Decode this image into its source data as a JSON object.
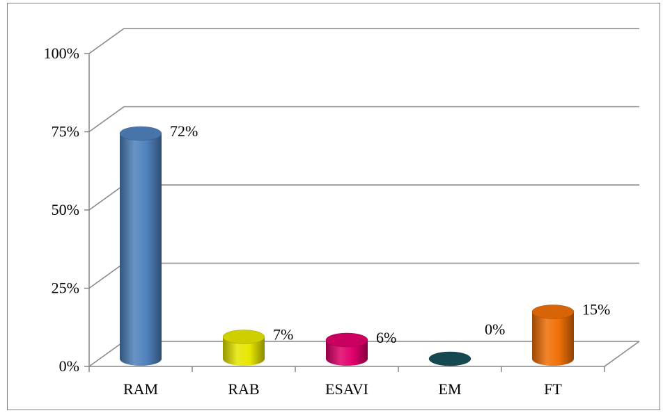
{
  "chart_data": {
    "type": "bar",
    "categories": [
      "RAM",
      "RAB",
      "ESAVI",
      "EM",
      "FT"
    ],
    "values": [
      72,
      7,
      6,
      0,
      15
    ],
    "data_labels": [
      "72%",
      "7%",
      "6%",
      "0%",
      "15%"
    ],
    "y_ticks": [
      "0%",
      "25%",
      "50%",
      "75%",
      "100%"
    ],
    "ylim": [
      0,
      100
    ],
    "title": "",
    "xlabel": "",
    "ylabel": "",
    "grid": true,
    "legend": "none",
    "style": "3d-cylinder",
    "colors": [
      "#4f81bd",
      "#e6e600",
      "#e0006b",
      "#17505a",
      "#ef6f07"
    ]
  }
}
